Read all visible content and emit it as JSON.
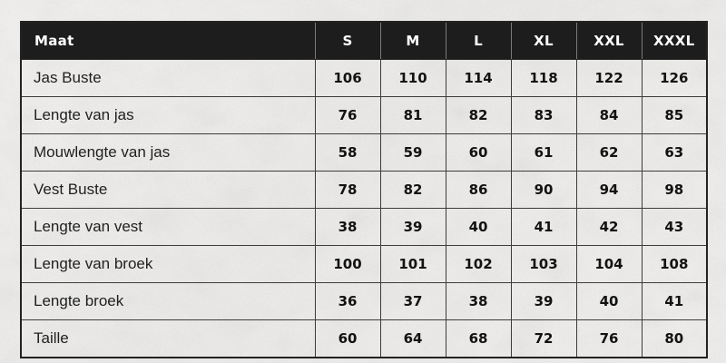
{
  "colors": {
    "header_bg": "#1d1d1d",
    "header_text": "#ffffff",
    "border": "#3c3c3c",
    "outer_border": "#222222",
    "background": "#efeeeb",
    "label_text": "#1f1f1f",
    "value_text": "#121212"
  },
  "table": {
    "header": {
      "label": "Maat",
      "sizes": [
        "S",
        "M",
        "L",
        "XL",
        "XXL",
        "XXXL"
      ]
    },
    "rows": [
      {
        "label": "Jas Buste",
        "values": [
          "106",
          "110",
          "114",
          "118",
          "122",
          "126"
        ]
      },
      {
        "label": "Lengte van jas",
        "values": [
          "76",
          "81",
          "82",
          "83",
          "84",
          "85"
        ]
      },
      {
        "label": "Mouwlengte van jas",
        "values": [
          "58",
          "59",
          "60",
          "61",
          "62",
          "63"
        ]
      },
      {
        "label": "Vest Buste",
        "values": [
          "78",
          "82",
          "86",
          "90",
          "94",
          "98"
        ]
      },
      {
        "label": "Lengte van vest",
        "values": [
          "38",
          "39",
          "40",
          "41",
          "42",
          "43"
        ]
      },
      {
        "label": "Lengte van broek",
        "values": [
          "100",
          "101",
          "102",
          "103",
          "104",
          "108"
        ]
      },
      {
        "label": "Lengte broek",
        "values": [
          "36",
          "37",
          "38",
          "39",
          "40",
          "41"
        ]
      },
      {
        "label": "Taille",
        "values": [
          "60",
          "64",
          "68",
          "72",
          "76",
          "80"
        ]
      }
    ]
  },
  "chart_data": {
    "type": "table",
    "title": "Maat",
    "categories": [
      "S",
      "M",
      "L",
      "XL",
      "XXL",
      "XXXL"
    ],
    "series": [
      {
        "name": "Jas Buste",
        "values": [
          106,
          110,
          114,
          118,
          122,
          126
        ]
      },
      {
        "name": "Lengte van jas",
        "values": [
          76,
          81,
          82,
          83,
          84,
          85
        ]
      },
      {
        "name": "Mouwlengte van jas",
        "values": [
          58,
          59,
          60,
          61,
          62,
          63
        ]
      },
      {
        "name": "Vest Buste",
        "values": [
          78,
          82,
          86,
          90,
          94,
          98
        ]
      },
      {
        "name": "Lengte van vest",
        "values": [
          38,
          39,
          40,
          41,
          42,
          43
        ]
      },
      {
        "name": "Lengte van broek",
        "values": [
          100,
          101,
          102,
          103,
          104,
          108
        ]
      },
      {
        "name": "Lengte broek",
        "values": [
          36,
          37,
          38,
          39,
          40,
          41
        ]
      },
      {
        "name": "Taille",
        "values": [
          60,
          64,
          68,
          72,
          76,
          80
        ]
      }
    ]
  }
}
